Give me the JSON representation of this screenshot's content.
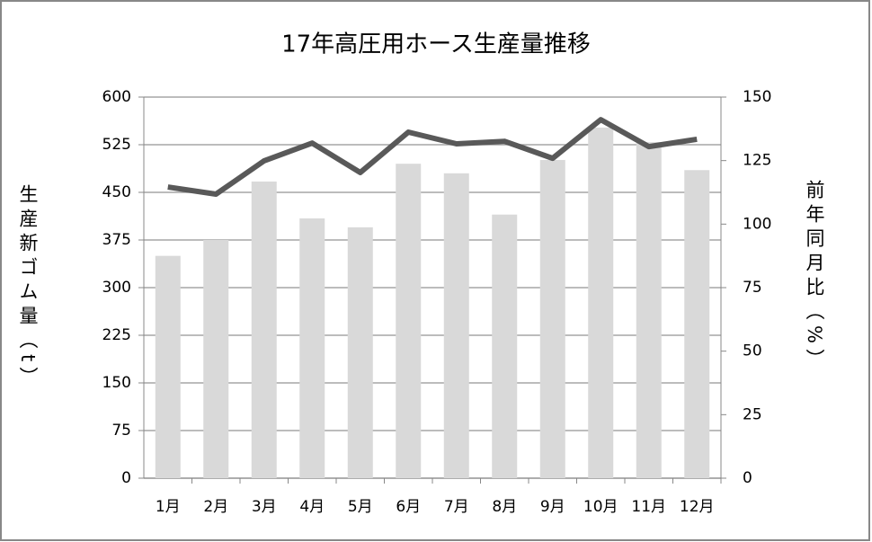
{
  "chart_data": {
    "type": "bar-line",
    "title": "17年高圧用ホース生産量推移",
    "ylabel": "生産新ゴム量（t）",
    "y2label": "前年同月比（%）",
    "categories": [
      "1月",
      "2月",
      "3月",
      "4月",
      "5月",
      "6月",
      "7月",
      "8月",
      "9月",
      "10月",
      "11月",
      "12月"
    ],
    "series": [
      {
        "type": "bar",
        "color": "#d9d9d9",
        "values": [
          350,
          375,
          467,
          409,
          395,
          495,
          480,
          415,
          501,
          552,
          529,
          485
        ]
      },
      {
        "type": "line",
        "axis": "y2",
        "color": "#595959",
        "values": [
          114.6,
          111.8,
          124.9,
          131.9,
          120.3,
          136.2,
          131.6,
          132.6,
          125.9,
          141.1,
          130.5,
          133.4
        ]
      }
    ],
    "ylim": [
      0,
      600
    ],
    "yticks": [
      0,
      75,
      150,
      225,
      300,
      375,
      450,
      525,
      600
    ],
    "y2lim": [
      0,
      150
    ],
    "y2ticks": [
      0,
      25,
      50,
      75,
      100,
      125,
      150
    ],
    "grid": true
  }
}
